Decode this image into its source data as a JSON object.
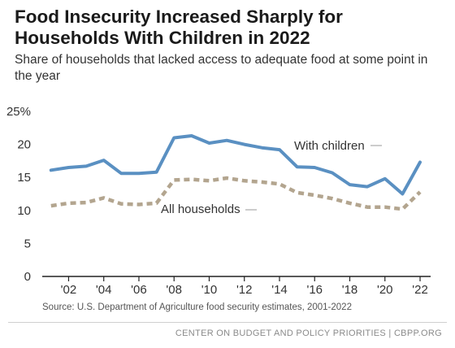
{
  "header": {
    "title": "Food Insecurity Increased Sharply for Households With Children in 2022",
    "subtitle": "Share of households that lacked access to adequate food at some point in the year"
  },
  "source": "Source: U.S. Department of Agriculture food security estimates, 2001-2022",
  "footer": "CENTER ON BUDGET AND POLICY PRIORITIES | CBPP.ORG",
  "colors": {
    "with_children": "#5a90c2",
    "all_households": "#b3a58f",
    "axis": "#222222"
  },
  "chart_data": {
    "type": "line",
    "title": "Food Insecurity Increased Sharply for Households With Children in 2022",
    "subtitle": "Share of households that lacked access to adequate food at some point in the year",
    "x": [
      2001,
      2002,
      2003,
      2004,
      2005,
      2006,
      2007,
      2008,
      2009,
      2010,
      2011,
      2012,
      2013,
      2014,
      2015,
      2016,
      2017,
      2018,
      2019,
      2020,
      2021,
      2022
    ],
    "x_ticks": [
      2002,
      2004,
      2006,
      2008,
      2010,
      2012,
      2014,
      2016,
      2018,
      2020,
      2022
    ],
    "x_tick_labels": [
      "'02",
      "'04",
      "'06",
      "'08",
      "'10",
      "'12",
      "'14",
      "'16",
      "'18",
      "'20",
      "'22"
    ],
    "y_ticks": [
      0,
      5,
      10,
      15,
      20,
      25
    ],
    "y_tick_labels": [
      "0",
      "5",
      "10",
      "15",
      "20",
      "25%"
    ],
    "ylim": [
      0,
      25
    ],
    "xlabel": "",
    "ylabel": "",
    "grid": false,
    "series": [
      {
        "name": "With children",
        "style": "solid",
        "values": [
          16.1,
          16.5,
          16.7,
          17.6,
          15.6,
          15.6,
          15.8,
          21.0,
          21.3,
          20.2,
          20.6,
          20.0,
          19.5,
          19.2,
          16.6,
          16.5,
          15.7,
          13.9,
          13.6,
          14.8,
          12.5,
          17.3
        ]
      },
      {
        "name": "All households",
        "style": "dashed",
        "values": [
          10.7,
          11.1,
          11.2,
          11.9,
          11.0,
          10.9,
          11.1,
          14.6,
          14.7,
          14.5,
          14.9,
          14.5,
          14.3,
          14.0,
          12.7,
          12.3,
          11.8,
          11.1,
          10.5,
          10.5,
          10.2,
          12.8
        ]
      }
    ]
  }
}
